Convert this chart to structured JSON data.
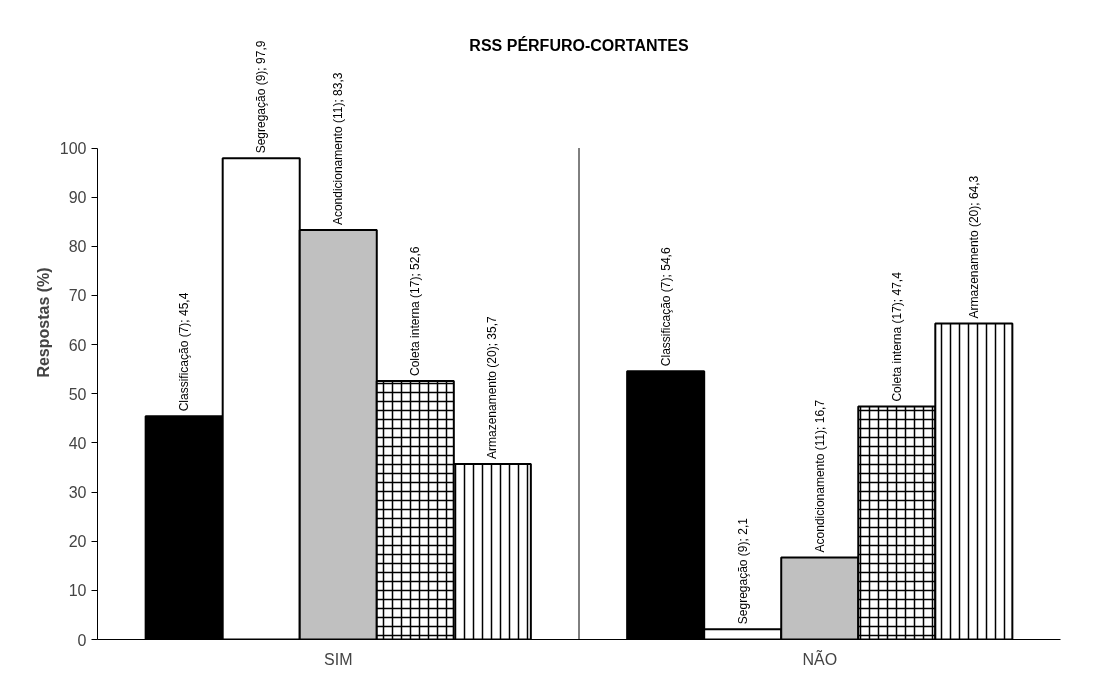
{
  "chart_data": {
    "type": "bar",
    "title": "RSS PÉRFURO-CORTANTES",
    "ylabel": "Respostas (%)",
    "categories": [
      "SIM",
      "NÃO"
    ],
    "series": [
      {
        "color": "#000000",
        "values": [
          45.4,
          54.6
        ],
        "value_labels": [
          "Classificação (7); 45,4",
          "Classificação (7); 54,6"
        ]
      },
      {
        "color": "#ffffff",
        "values": [
          97.9,
          2.1
        ],
        "value_labels": [
          "Segregação (9); 97,9",
          "Segregação (9); 2,1"
        ]
      },
      {
        "color": "#c0c0c0",
        "values": [
          83.3,
          16.7
        ],
        "value_labels": [
          "Acondicionamento (11); 83,3",
          "Acondicionamento (11); 16,7"
        ]
      },
      {
        "color": "#ffffff",
        "values": [
          52.6,
          47.4
        ],
        "value_labels": [
          "Coleta interna (17); 52,6",
          "Coleta interna (17); 47,4"
        ]
      },
      {
        "color": "#ffffff",
        "values": [
          35.7,
          64.3
        ],
        "value_labels": [
          "Armazenamento (20); 35,7",
          "Armazenamento (20); 64,3"
        ]
      }
    ],
    "ylim": [
      0,
      100
    ],
    "yticks": [
      0,
      10,
      20,
      30,
      40,
      50,
      60,
      70,
      80,
      90,
      100
    ],
    "grid": false
  }
}
